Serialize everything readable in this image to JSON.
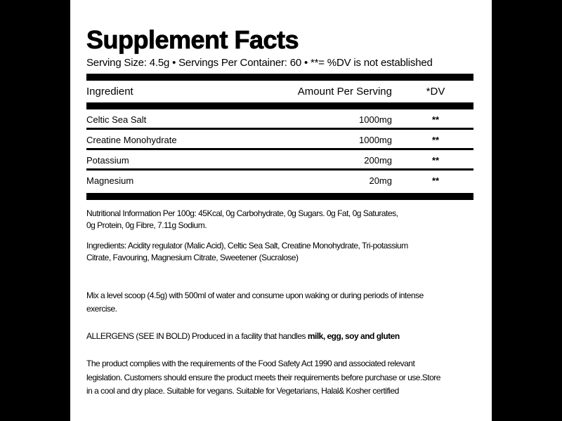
{
  "colors": {
    "page_background": "#000000",
    "label_background": "#ffffff",
    "text": "#000000"
  },
  "label": {
    "title": "Supplement Facts",
    "serving_line": "Serving Size: 4.5g • Servings Per Container: 60 • **= %DV is not established",
    "table": {
      "headers": {
        "ingredient": "Ingredient",
        "amount": "Amount Per Serving",
        "dv": "*DV"
      },
      "rows": [
        {
          "ingredient": "Celtic Sea Salt",
          "amount": "1000mg",
          "dv": "**"
        },
        {
          "ingredient": "Creatine Monohydrate",
          "amount": "1000mg",
          "dv": "**"
        },
        {
          "ingredient": "Potassium",
          "amount": "200mg",
          "dv": "**"
        },
        {
          "ingredient": "Magnesium",
          "amount": "20mg",
          "dv": "**"
        }
      ]
    },
    "nutrition_info_lines": [
      "Nutritional Information Per 100g: 45Kcal, 0g Carbohydrate, 0g Sugars. 0g Fat, 0g Saturates,",
      "0g Protein, 0g Fibre, 7.11g Sodium."
    ],
    "ingredients_lines": [
      "Ingredients: Acidity regulator (Malic Acid), Celtic Sea Salt, Creatine Monohydrate, Tri-potassium",
      "Citrate, Favouring, Magnesium Citrate, Sweetener (Sucralose)"
    ],
    "directions_lines": [
      "Mix a level scoop (4.5g) with 500ml of water and consume upon waking or during periods of intense",
      "exercise."
    ],
    "allergens_prefix": "ALLERGENS (SEE IN BOLD) Produced in a facility that handles ",
    "allergens_bold": "milk, egg, soy and gluten",
    "compliance_lines": [
      "The product complies with the requirements of the Food Safety Act 1990 and associated relevant",
      "legislation. Customers should ensure the product meets their requirements before purchase or use.Store",
      "in a cool and dry place. Suitable for vegans. Suitable for Vegetarians, Halal& Kosher certified"
    ]
  }
}
